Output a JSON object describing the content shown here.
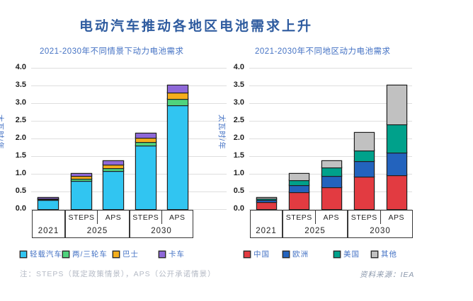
{
  "page": {
    "title": "电动汽车推动各地区电池需求上升"
  },
  "footer": {
    "note": "注：STEPS（既定政策情景），APS（公开承诺情景）",
    "source": "资料来源：IEA"
  },
  "chart_data": [
    {
      "type": "bar",
      "stacked": true,
      "title": "2021-2030年不同情景下动力电池需求",
      "ylabel": "太瓦时/年",
      "ylim": [
        0,
        4.0
      ],
      "ytick_step": 0.5,
      "grid": true,
      "legend_position": "bottom",
      "categories": [
        "2021",
        "2025 STEPS",
        "2025 APS",
        "2030 STEPS",
        "2030 APS"
      ],
      "x_axis": {
        "groups": [
          {
            "year": "2021",
            "scenarios": []
          },
          {
            "year": "2025",
            "scenarios": [
              "STEPS",
              "APS"
            ]
          },
          {
            "year": "2030",
            "scenarios": [
              "STEPS",
              "APS"
            ]
          }
        ]
      },
      "series": [
        {
          "name": "轻载汽车",
          "color": "#31C5F1",
          "values": [
            0.27,
            0.81,
            1.09,
            1.8,
            2.95
          ]
        },
        {
          "name": "两/三轮车",
          "color": "#4FD37D",
          "values": [
            0.01,
            0.05,
            0.07,
            0.1,
            0.17
          ]
        },
        {
          "name": "巴士",
          "color": "#F4AE1C",
          "values": [
            0.02,
            0.08,
            0.1,
            0.12,
            0.18
          ]
        },
        {
          "name": "卡车",
          "color": "#8E68D8",
          "values": [
            0.02,
            0.06,
            0.1,
            0.13,
            0.2
          ]
        }
      ]
    },
    {
      "type": "bar",
      "stacked": true,
      "title": "2021-2030年不同地区动力电池需求",
      "ylabel": "太瓦时/年",
      "ylim": [
        0,
        4.0
      ],
      "ytick_step": 0.5,
      "grid": true,
      "legend_position": "bottom",
      "categories": [
        "2021",
        "2025 STEPS",
        "2025 APS",
        "2030 STEPS",
        "2030 APS"
      ],
      "x_axis": {
        "groups": [
          {
            "year": "2021",
            "scenarios": []
          },
          {
            "year": "2025",
            "scenarios": [
              "STEPS",
              "APS"
            ]
          },
          {
            "year": "2030",
            "scenarios": [
              "STEPS",
              "APS"
            ]
          }
        ]
      },
      "series": [
        {
          "name": "中国",
          "color": "#E23B41",
          "values": [
            0.2,
            0.49,
            0.62,
            0.92,
            0.96
          ]
        },
        {
          "name": "欧洲",
          "color": "#2363BD",
          "values": [
            0.07,
            0.2,
            0.32,
            0.44,
            0.64
          ]
        },
        {
          "name": "美国",
          "color": "#00A18B",
          "values": [
            0.04,
            0.13,
            0.25,
            0.3,
            0.8
          ]
        },
        {
          "name": "其他",
          "color": "#C1C1C1",
          "values": [
            0.02,
            0.18,
            0.18,
            0.5,
            1.1
          ]
        }
      ]
    }
  ]
}
